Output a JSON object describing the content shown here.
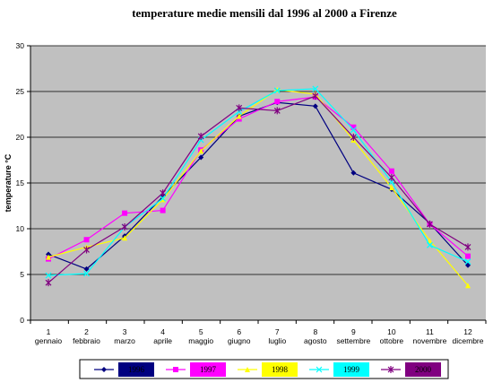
{
  "chart_data": {
    "type": "line",
    "title": "temperature medie mensili dal 1996 al 2000 a Firenze",
    "ylabel": "temperature °C",
    "xlabel": "",
    "ylim": [
      0,
      30
    ],
    "yticks": [
      0,
      5,
      10,
      15,
      20,
      25,
      30
    ],
    "grid": true,
    "legend_position": "bottom",
    "x": [
      1,
      2,
      3,
      4,
      5,
      6,
      7,
      8,
      9,
      10,
      11,
      12
    ],
    "categories": [
      "gennaio",
      "febbraio",
      "marzo",
      "aprile",
      "maggio",
      "giugno",
      "luglio",
      "agosto",
      "settembre",
      "ottobre",
      "novembre",
      "dicembre"
    ],
    "series": [
      {
        "name": "1996",
        "color": "#000080",
        "marker": "diamond",
        "values": [
          7.2,
          5.6,
          9.2,
          13.5,
          17.8,
          22.3,
          23.8,
          23.4,
          16.1,
          14.3,
          10.6,
          6.0
        ]
      },
      {
        "name": "1997",
        "color": "#ff00ff",
        "marker": "square",
        "values": [
          6.7,
          8.8,
          11.7,
          12.0,
          18.6,
          22.0,
          23.9,
          24.4,
          21.1,
          16.3,
          10.5,
          7.0
        ]
      },
      {
        "name": "1998",
        "color": "#ffff00",
        "marker": "triangle",
        "values": [
          6.9,
          8.0,
          9.0,
          13.2,
          18.5,
          22.3,
          25.2,
          24.7,
          19.7,
          14.5,
          8.7,
          3.8
        ]
      },
      {
        "name": "1999",
        "color": "#00ffff",
        "marker": "x",
        "values": [
          4.9,
          5.1,
          10.2,
          13.3,
          19.7,
          22.8,
          25.1,
          25.3,
          20.8,
          15.1,
          8.2,
          6.4
        ]
      },
      {
        "name": "2000",
        "color": "#800080",
        "marker": "star",
        "values": [
          4.1,
          7.7,
          10.2,
          13.9,
          20.1,
          23.2,
          22.9,
          24.5,
          20.0,
          15.6,
          10.5,
          8.0
        ]
      }
    ]
  }
}
